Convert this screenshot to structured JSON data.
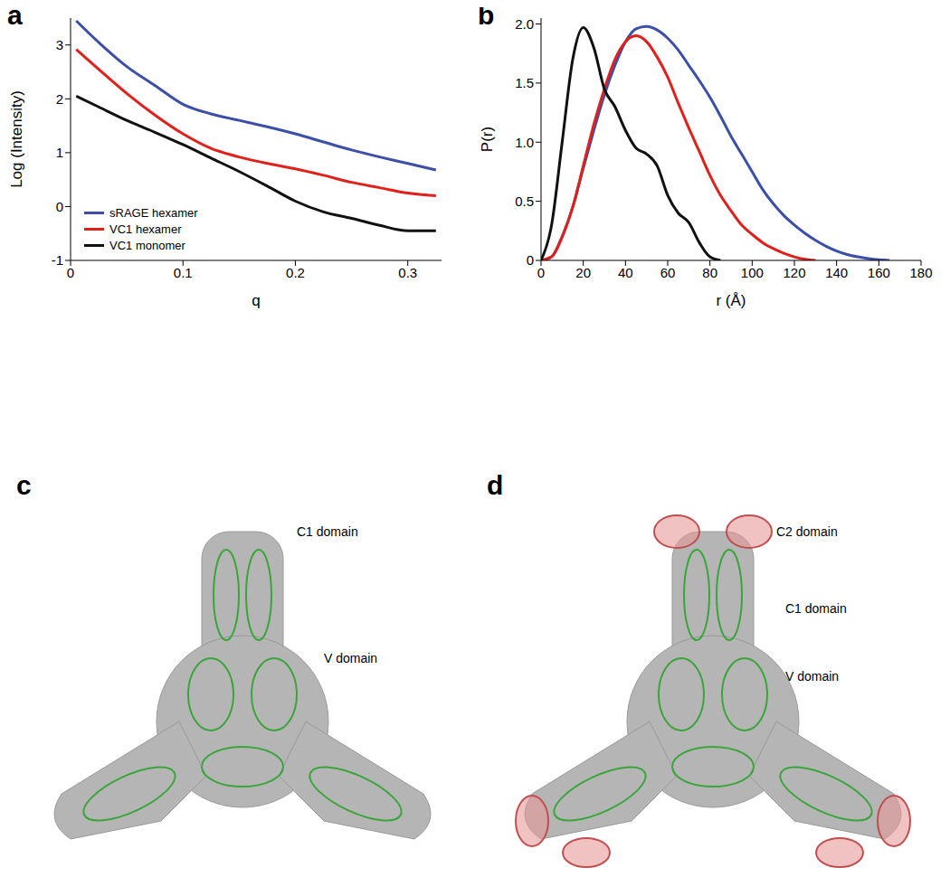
{
  "chart_data": [
    {
      "type": "line",
      "title": "a",
      "x_label": "q",
      "y_label": "Log (Intensity)",
      "x": [
        0.005,
        0.025,
        0.05,
        0.075,
        0.1,
        0.125,
        0.15,
        0.175,
        0.2,
        0.225,
        0.25,
        0.275,
        0.3,
        0.325
      ],
      "xlim": [
        0,
        0.33
      ],
      "xticks": [
        0,
        0.1,
        0.2,
        0.3
      ],
      "ylim": [
        -1,
        3.5
      ],
      "yticks": [
        -1,
        0,
        1,
        2,
        3
      ],
      "legend": "lower left",
      "series": [
        {
          "name": "sRAGE hexamer",
          "color": "#3b4fa8",
          "values": [
            3.45,
            3.05,
            2.6,
            2.25,
            1.9,
            1.72,
            1.6,
            1.48,
            1.35,
            1.2,
            1.05,
            0.92,
            0.8,
            0.68
          ]
        },
        {
          "name": "VC1 hexamer",
          "color": "#e0201b",
          "values": [
            2.92,
            2.55,
            2.1,
            1.7,
            1.35,
            1.08,
            0.92,
            0.8,
            0.7,
            0.58,
            0.45,
            0.35,
            0.25,
            0.2
          ]
        },
        {
          "name": "VC1 monomer",
          "color": "#111111",
          "values": [
            2.05,
            1.85,
            1.6,
            1.38,
            1.15,
            0.9,
            0.65,
            0.38,
            0.1,
            -0.1,
            -0.22,
            -0.35,
            -0.45,
            -0.45
          ]
        }
      ]
    },
    {
      "type": "line",
      "title": "b",
      "x_label": "r (Å)",
      "y_label": "P(r)",
      "x": [
        0,
        5,
        10,
        15,
        20,
        25,
        30,
        35,
        40,
        45,
        50,
        55,
        60,
        65,
        70,
        75,
        80,
        85,
        90,
        95,
        100,
        105,
        110,
        115,
        120,
        125,
        130,
        135,
        140,
        145,
        150,
        155,
        160,
        165
      ],
      "xlim": [
        0,
        180
      ],
      "xticks": [
        0,
        20,
        40,
        60,
        80,
        100,
        120,
        140,
        160,
        180
      ],
      "ylim": [
        0,
        2.05
      ],
      "yticks": [
        0,
        0.5,
        {
          "value": 1,
          "label": "1.0"
        },
        {
          "value": 1.5,
          "label": "1.5"
        },
        {
          "value": 2,
          "label": "2.0"
        }
      ],
      "series": [
        {
          "color": "#3b4fa8",
          "values": [
            0,
            0.03,
            0.2,
            0.45,
            0.78,
            1.1,
            1.4,
            1.65,
            1.85,
            1.96,
            1.98,
            1.95,
            1.88,
            1.78,
            1.65,
            1.52,
            1.38,
            1.22,
            1.05,
            0.9,
            0.75,
            0.6,
            0.48,
            0.38,
            0.3,
            0.23,
            0.17,
            0.12,
            0.08,
            0.05,
            0.03,
            0.015,
            0.005,
            0
          ]
        },
        {
          "color": "#e0201b",
          "values": [
            0,
            0.03,
            0.2,
            0.45,
            0.8,
            1.15,
            1.45,
            1.7,
            1.85,
            1.9,
            1.85,
            1.72,
            1.55,
            1.33,
            1.12,
            0.92,
            0.72,
            0.55,
            0.42,
            0.3,
            0.22,
            0.15,
            0.1,
            0.06,
            0.03,
            0.01,
            0,
            null,
            null,
            null,
            null,
            null,
            null,
            null
          ]
        },
        {
          "color": "#111111",
          "values": [
            0,
            0.3,
            1.0,
            1.7,
            1.97,
            1.8,
            1.45,
            1.3,
            1.1,
            0.95,
            0.9,
            0.8,
            0.55,
            0.4,
            0.32,
            0.15,
            0.03,
            0,
            null,
            null,
            null,
            null,
            null,
            null,
            null,
            null,
            null,
            null,
            null,
            null,
            null,
            null,
            null,
            null
          ]
        }
      ]
    }
  ],
  "diagrams": [
    {
      "title": "c",
      "labels": [
        "C1 domain",
        "V domain"
      ]
    },
    {
      "title": "d",
      "labels": [
        "C2 domain",
        "C1 domain",
        "V domain"
      ]
    }
  ]
}
